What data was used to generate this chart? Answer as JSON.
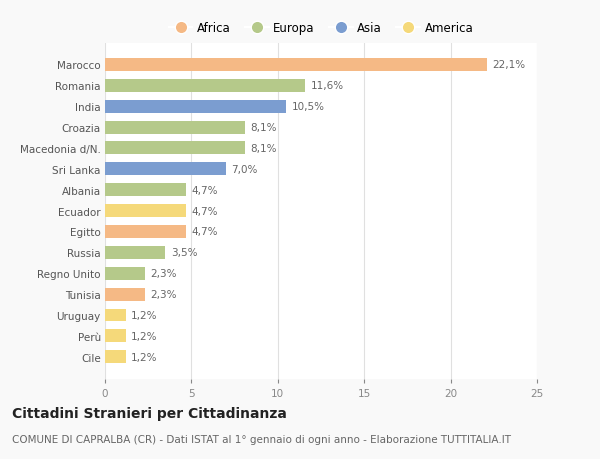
{
  "categories": [
    "Marocco",
    "Romania",
    "India",
    "Croazia",
    "Macedonia d/N.",
    "Sri Lanka",
    "Albania",
    "Ecuador",
    "Egitto",
    "Russia",
    "Regno Unito",
    "Tunisia",
    "Uruguay",
    "Perù",
    "Cile"
  ],
  "values": [
    22.1,
    11.6,
    10.5,
    8.1,
    8.1,
    7.0,
    4.7,
    4.7,
    4.7,
    3.5,
    2.3,
    2.3,
    1.2,
    1.2,
    1.2
  ],
  "labels": [
    "22,1%",
    "11,6%",
    "10,5%",
    "8,1%",
    "8,1%",
    "7,0%",
    "4,7%",
    "4,7%",
    "4,7%",
    "3,5%",
    "2,3%",
    "2,3%",
    "1,2%",
    "1,2%",
    "1,2%"
  ],
  "colors": [
    "#f5b985",
    "#b5c98a",
    "#7b9dd0",
    "#b5c98a",
    "#b5c98a",
    "#7b9dd0",
    "#b5c98a",
    "#f5d97a",
    "#f5b985",
    "#b5c98a",
    "#b5c98a",
    "#f5b985",
    "#f5d97a",
    "#f5d97a",
    "#f5d97a"
  ],
  "legend_labels": [
    "Africa",
    "Europa",
    "Asia",
    "America"
  ],
  "legend_colors": [
    "#f5b985",
    "#b5c98a",
    "#7b9dd0",
    "#f5d97a"
  ],
  "title": "Cittadini Stranieri per Cittadinanza",
  "subtitle": "COMUNE DI CAPRALBA (CR) - Dati ISTAT al 1° gennaio di ogni anno - Elaborazione TUTTITALIA.IT",
  "xlim": [
    0,
    25
  ],
  "xticks": [
    0,
    5,
    10,
    15,
    20,
    25
  ],
  "bg_color": "#f9f9f9",
  "bar_bg_color": "#ffffff",
  "title_fontsize": 10,
  "subtitle_fontsize": 7.5,
  "label_fontsize": 7.5,
  "tick_fontsize": 7.5,
  "legend_fontsize": 8.5
}
